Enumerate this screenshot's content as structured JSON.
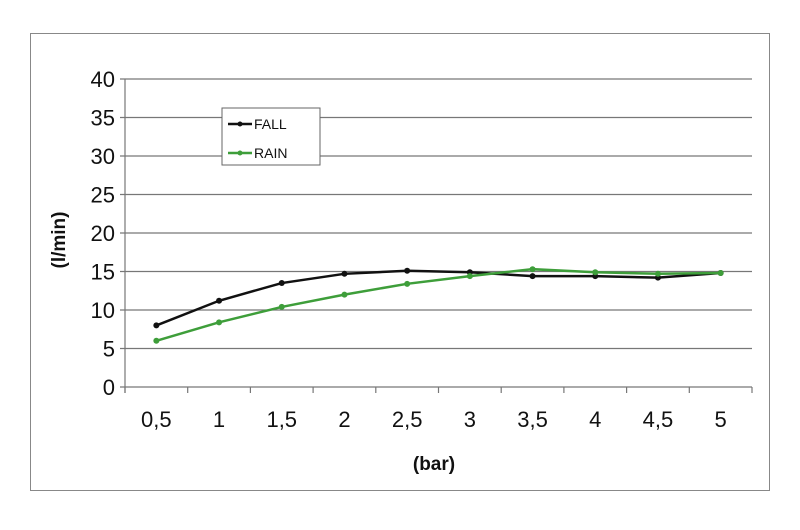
{
  "chart_data": {
    "type": "line",
    "title": "",
    "xlabel": "(bar)",
    "ylabel": "(l/min)",
    "categories": [
      "0,5",
      "1",
      "1,5",
      "2",
      "2,5",
      "3",
      "3,5",
      "4",
      "4,5",
      "5"
    ],
    "yticks": [
      "0",
      "5",
      "10",
      "15",
      "20",
      "25",
      "30",
      "35",
      "40"
    ],
    "ylim": [
      0,
      40
    ],
    "grid": true,
    "legend_position": "top-left",
    "series": [
      {
        "name": "FALL",
        "color": "#111111",
        "values": [
          8.0,
          11.2,
          13.5,
          14.7,
          15.1,
          14.9,
          14.4,
          14.4,
          14.2,
          14.8
        ]
      },
      {
        "name": "RAIN",
        "color": "#3e9e3a",
        "values": [
          6.0,
          8.4,
          10.4,
          12.0,
          13.4,
          14.4,
          15.3,
          14.9,
          14.7,
          14.8
        ]
      }
    ]
  }
}
